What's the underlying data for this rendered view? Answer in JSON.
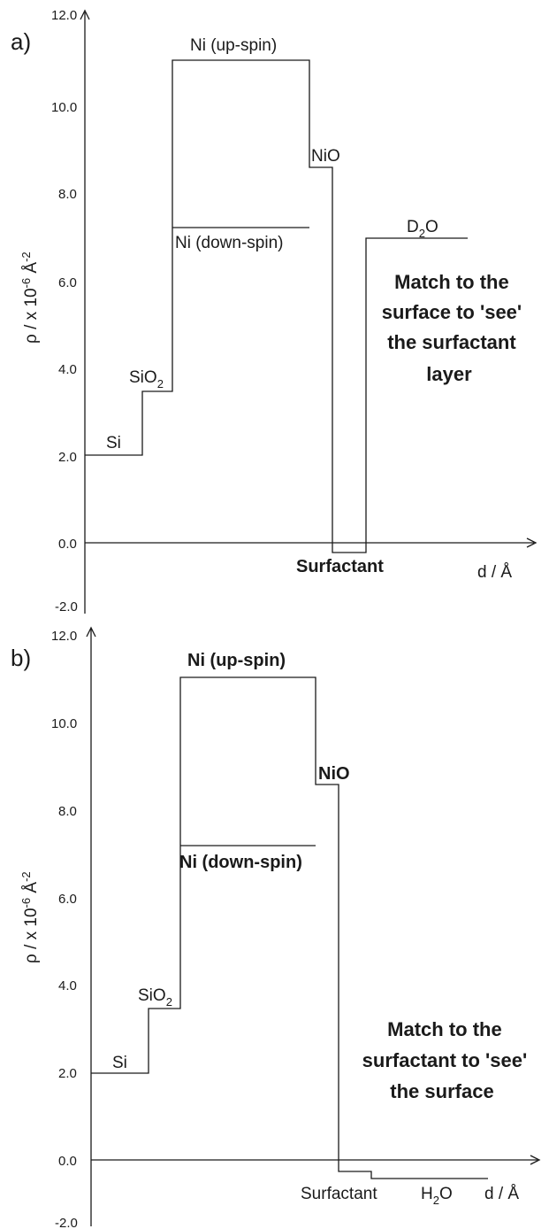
{
  "chart_data": [
    {
      "type": "line",
      "panel_label": "a)",
      "ylabel": "ρ / x 10",
      "ylabel_exp": "-6",
      "ylabel_unit": " Å",
      "ylabel_unit_exp": "-2",
      "xlabel": "d / Å",
      "ylim": [
        -2.0,
        12.0
      ],
      "y_ticks": [
        "12.0",
        "10.0",
        "8.0",
        "6.0",
        "4.0",
        "2.0",
        "0.0",
        "-2.0"
      ],
      "layers": [
        {
          "name": "Si",
          "x": [
            0,
            1
          ],
          "rho": 2.0
        },
        {
          "name": "SiO2",
          "x": [
            1,
            1.5
          ],
          "rho": 3.5
        },
        {
          "name": "Ni (up-spin)",
          "x": [
            1.5,
            3.9
          ],
          "rho": 11.1
        },
        {
          "name": "Ni (down-spin)",
          "x": [
            1.5,
            3.9
          ],
          "rho": 7.2
        },
        {
          "name": "NiO",
          "x": [
            3.9,
            4.3
          ],
          "rho": 8.6
        },
        {
          "name": "Surfactant",
          "x": [
            4.3,
            4.9
          ],
          "rho": -0.25
        },
        {
          "name": "D2O",
          "x": [
            4.9,
            6.7
          ],
          "rho": 6.95
        }
      ],
      "labels": {
        "si": "Si",
        "sio2_base": "SiO",
        "sio2_sub": "2",
        "ni_up": "Ni (up-spin)",
        "ni_down": "Ni (down-spin)",
        "nio": "NiO",
        "surfactant": "Surfactant",
        "d2o_base": "D",
        "d2o_sub": "2",
        "d2o_tail": "O"
      },
      "annotation": [
        "Match to the",
        "surface to 'see'",
        "the surfactant",
        "layer"
      ]
    },
    {
      "type": "line",
      "panel_label": "b)",
      "ylabel": "ρ / x 10",
      "ylabel_exp": "-6",
      "ylabel_unit": " Å",
      "ylabel_unit_exp": "-2",
      "xlabel": "d / Å",
      "ylim": [
        -2.0,
        12.0
      ],
      "y_ticks": [
        "12.0",
        "10.0",
        "8.0",
        "6.0",
        "4.0",
        "2.0",
        "0.0",
        "-2.0"
      ],
      "layers": [
        {
          "name": "Si",
          "x": [
            0,
            1
          ],
          "rho": 2.0
        },
        {
          "name": "SiO2",
          "x": [
            1,
            1.5
          ],
          "rho": 3.5
        },
        {
          "name": "Ni (up-spin)",
          "x": [
            1.5,
            3.9
          ],
          "rho": 11.1
        },
        {
          "name": "Ni (down-spin)",
          "x": [
            1.5,
            3.9
          ],
          "rho": 7.2
        },
        {
          "name": "NiO",
          "x": [
            3.9,
            4.3
          ],
          "rho": 8.6
        },
        {
          "name": "Surfactant",
          "x": [
            4.3,
            4.9
          ],
          "rho": -0.25
        },
        {
          "name": "H2O",
          "x": [
            4.9,
            6.9
          ],
          "rho": -0.5
        }
      ],
      "labels": {
        "si": "Si",
        "sio2_base": "SiO",
        "sio2_sub": "2",
        "ni_up": "Ni (up-spin)",
        "ni_down": "Ni (down-spin)",
        "nio": "NiO",
        "surfactant": "Surfactant",
        "h2o_base": "H",
        "h2o_sub": "2",
        "h2o_tail": "O"
      },
      "annotation": [
        "Match to the",
        "surfactant to 'see'",
        "the surface"
      ]
    }
  ]
}
